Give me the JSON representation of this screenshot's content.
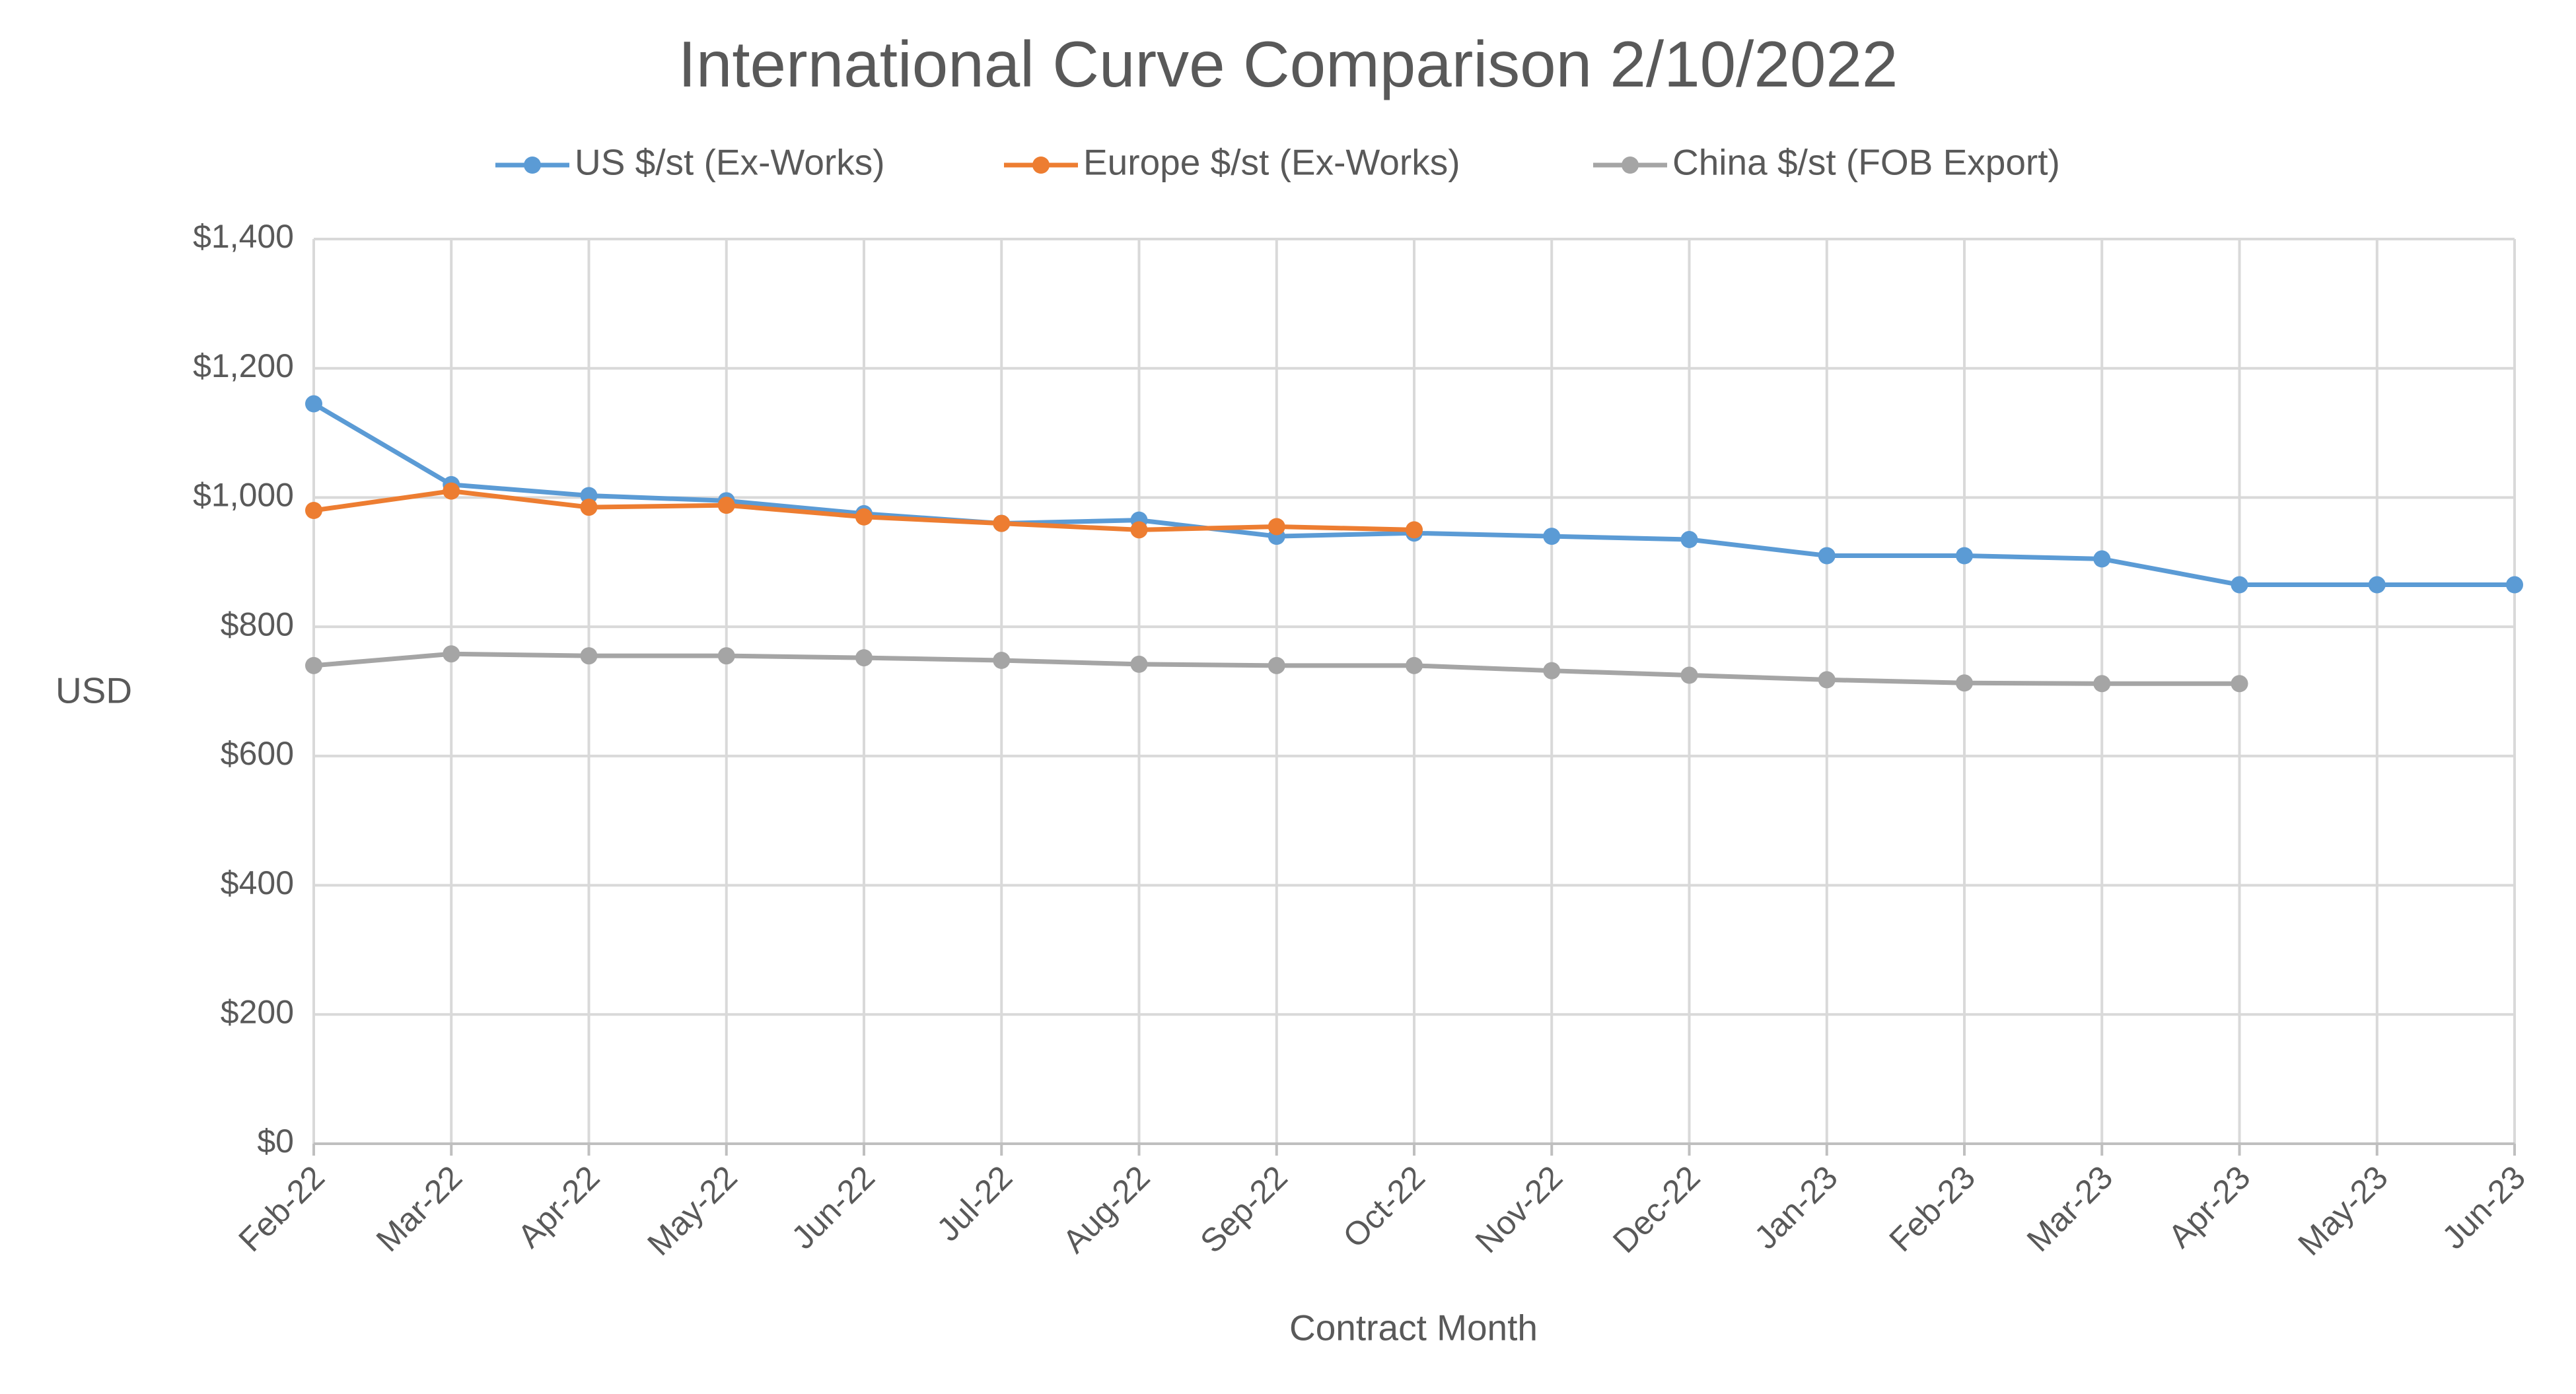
{
  "chart_data": {
    "type": "line",
    "title": "International Curve Comparison 2/10/2022",
    "x_label": "Contract Month",
    "y_label": "USD",
    "categories": [
      "Feb-22",
      "Mar-22",
      "Apr-22",
      "May-22",
      "Jun-22",
      "Jul-22",
      "Aug-22",
      "Sep-22",
      "Oct-22",
      "Nov-22",
      "Dec-22",
      "Jan-23",
      "Feb-23",
      "Mar-23",
      "Apr-23",
      "May-23",
      "Jun-23"
    ],
    "series": [
      {
        "name": "US $/st (Ex-Works)",
        "color": "#5b9bd5",
        "values": [
          1145,
          1020,
          1003,
          995,
          975,
          960,
          965,
          940,
          945,
          940,
          935,
          910,
          910,
          905,
          865,
          865,
          865
        ]
      },
      {
        "name": "Europe $/st (Ex-Works)",
        "color": "#ed7d31",
        "values": [
          980,
          1010,
          985,
          988,
          970,
          960,
          950,
          955,
          950,
          null,
          null,
          null,
          null,
          null,
          null,
          null,
          null
        ]
      },
      {
        "name": "China $/st (FOB Export)",
        "color": "#a5a5a5",
        "values": [
          740,
          758,
          755,
          755,
          752,
          748,
          742,
          740,
          740,
          732,
          725,
          718,
          713,
          712,
          712,
          null,
          null
        ]
      }
    ],
    "ylim": [
      0,
      1400
    ],
    "yticks": [
      {
        "value": 0,
        "label": "$0"
      },
      {
        "value": 200,
        "label": "$200"
      },
      {
        "value": 400,
        "label": "$400"
      },
      {
        "value": 600,
        "label": "$600"
      },
      {
        "value": 800,
        "label": "$800"
      },
      {
        "value": 1000,
        "label": "$1,000"
      },
      {
        "value": 1200,
        "label": "$1,200"
      },
      {
        "value": 1400,
        "label": "$1,400"
      }
    ],
    "grid": true,
    "legend": "top"
  }
}
